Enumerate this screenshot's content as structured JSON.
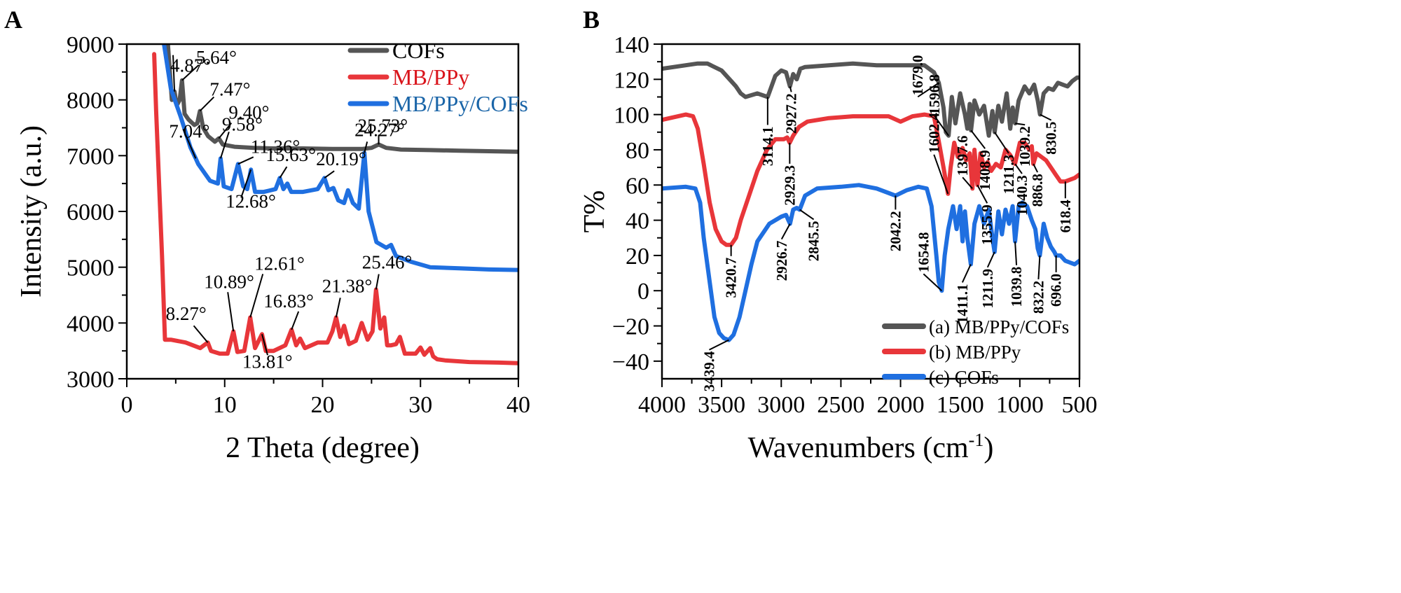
{
  "chart_data": [
    {
      "panel": "A",
      "type": "line",
      "title": "",
      "xlabel": "2 Theta (degree)",
      "ylabel": "Intensity (a.u.)",
      "xlim": [
        0,
        40
      ],
      "ylim": [
        3000,
        9000
      ],
      "xticks": [
        0,
        10,
        20,
        30,
        40
      ],
      "yticks": [
        3000,
        4000,
        5000,
        6000,
        7000,
        8000,
        9000
      ],
      "legend_position": "top-right",
      "grid": false,
      "series": [
        {
          "name": "COFs",
          "color": "#555555",
          "legend_color": "#000000",
          "x": [
            4.2,
            4.6,
            4.87,
            5.1,
            5.4,
            5.64,
            5.9,
            6.3,
            6.9,
            7.2,
            7.47,
            7.8,
            8.3,
            9.0,
            9.4,
            9.8,
            11,
            13,
            15,
            18,
            21,
            24,
            25.0,
            25.73,
            26.5,
            28,
            31,
            34,
            37,
            40
          ],
          "y": [
            9000,
            8000,
            8150,
            7900,
            8000,
            8350,
            7750,
            7650,
            7550,
            7580,
            7800,
            7500,
            7350,
            7250,
            7310,
            7200,
            7160,
            7140,
            7130,
            7130,
            7120,
            7120,
            7140,
            7200,
            7140,
            7110,
            7100,
            7090,
            7080,
            7070
          ]
        },
        {
          "name": "MB/PPy",
          "color": "#e8363a",
          "legend_color": "#d9141b",
          "x": [
            2.8,
            3.0,
            3.6,
            3.9,
            4.5,
            6,
            7.5,
            8.27,
            8.6,
            9.5,
            10.3,
            10.89,
            11.3,
            12.0,
            12.61,
            13.1,
            13.81,
            14.2,
            15,
            16.2,
            16.83,
            17.3,
            17.7,
            18.2,
            19.5,
            20.5,
            21.0,
            21.38,
            21.8,
            22.2,
            22.7,
            23.4,
            24.0,
            24.6,
            25.1,
            25.46,
            25.9,
            26.3,
            26.6,
            27.0,
            27.5,
            27.9,
            28.4,
            29.5,
            30.0,
            30.4,
            31.0,
            31.3,
            31.7,
            32.5,
            35,
            38,
            40
          ],
          "y": [
            8820,
            7800,
            5200,
            3700,
            3700,
            3650,
            3550,
            3650,
            3500,
            3450,
            3450,
            3850,
            3480,
            3500,
            4100,
            3550,
            3800,
            3500,
            3500,
            3600,
            3880,
            3600,
            3720,
            3550,
            3650,
            3650,
            3850,
            4100,
            3750,
            3950,
            3620,
            3680,
            4000,
            3700,
            3850,
            4600,
            3900,
            4100,
            3600,
            3600,
            3620,
            3750,
            3450,
            3450,
            3560,
            3430,
            3550,
            3400,
            3350,
            3330,
            3300,
            3290,
            3280
          ]
        },
        {
          "name": "MB/PPy/COFs",
          "color": "#1f6fe0",
          "legend_color": "#1a65a8",
          "x": [
            3.8,
            4.5,
            5.5,
            6.5,
            7.04,
            7.3,
            8.5,
            9.3,
            9.58,
            9.9,
            10.7,
            11.36,
            11.9,
            12.3,
            12.68,
            13.1,
            14,
            15.2,
            15.63,
            16.0,
            16.4,
            16.8,
            18,
            19.5,
            20.19,
            20.6,
            21.1,
            21.6,
            22.2,
            22.6,
            23.1,
            23.7,
            24.27,
            24.7,
            25.5,
            26.5,
            27.0,
            27.5,
            29,
            31,
            34,
            37,
            40
          ],
          "y": [
            9000,
            8200,
            7700,
            7150,
            6950,
            6850,
            6550,
            6500,
            6950,
            6450,
            6400,
            6850,
            6450,
            6400,
            6750,
            6350,
            6350,
            6400,
            6600,
            6400,
            6500,
            6350,
            6350,
            6400,
            6600,
            6380,
            6420,
            6200,
            6150,
            6380,
            6150,
            6050,
            7050,
            6000,
            5450,
            5350,
            5400,
            5200,
            5100,
            5000,
            4980,
            4960,
            4950
          ]
        }
      ],
      "annotations": [
        {
          "text": "4.87°",
          "series": "COFs",
          "x": 4.87
        },
        {
          "text": "5.64°",
          "series": "COFs",
          "x": 5.64
        },
        {
          "text": "7.47°",
          "series": "COFs",
          "x": 7.47
        },
        {
          "text": "9.40°",
          "series": "COFs",
          "x": 9.4
        },
        {
          "text": "25.73°",
          "series": "COFs",
          "x": 25.73
        },
        {
          "text": "7.04°",
          "series": "MB/PPy/COFs",
          "x": 7.04
        },
        {
          "text": "9.58°",
          "series": "MB/PPy/COFs",
          "x": 9.58
        },
        {
          "text": "11.36°",
          "series": "MB/PPy/COFs",
          "x": 11.36
        },
        {
          "text": "12.68°",
          "series": "MB/PPy/COFs",
          "x": 12.68
        },
        {
          "text": "15.63°",
          "series": "MB/PPy/COFs",
          "x": 15.63
        },
        {
          "text": "20.19°",
          "series": "MB/PPy/COFs",
          "x": 20.19
        },
        {
          "text": "24.27°",
          "series": "MB/PPy/COFs",
          "x": 24.27
        },
        {
          "text": "8.27°",
          "series": "MB/PPy",
          "x": 8.27
        },
        {
          "text": "10.89°",
          "series": "MB/PPy",
          "x": 10.89
        },
        {
          "text": "12.61°",
          "series": "MB/PPy",
          "x": 12.61
        },
        {
          "text": "13.81°",
          "series": "MB/PPy",
          "x": 13.81
        },
        {
          "text": "16.83°",
          "series": "MB/PPy",
          "x": 16.83
        },
        {
          "text": "21.38°",
          "series": "MB/PPy",
          "x": 21.38
        },
        {
          "text": "25.46°",
          "series": "MB/PPy",
          "x": 25.46
        }
      ]
    },
    {
      "panel": "B",
      "type": "line",
      "title": "",
      "xlabel": "Wavenumbers (cm",
      "xlabel_sup": "-1",
      "xlabel_end": ")",
      "ylabel": "T%",
      "xlim": [
        4000,
        500
      ],
      "ylim": [
        -50,
        140
      ],
      "xticks": [
        4000,
        3500,
        3000,
        2500,
        2000,
        1500,
        1000,
        500
      ],
      "yticks": [
        -40,
        -20,
        0,
        20,
        40,
        60,
        80,
        100,
        120,
        140
      ],
      "legend_position": "bottom-right",
      "grid": false,
      "series": [
        {
          "name": "(a) MB/PPy/COFs",
          "color": "#555555",
          "x": [
            4000,
            3700,
            3620,
            3500,
            3420,
            3380,
            3340,
            3300,
            3200,
            3114.1,
            3050,
            3000,
            2960,
            2927.2,
            2900,
            2870,
            2840,
            2800,
            2600,
            2400,
            2200,
            2000,
            1800,
            1720,
            1679,
            1640,
            1620,
            1596.8,
            1570,
            1540,
            1500,
            1460,
            1440,
            1420,
            1408.9,
            1380,
            1340,
            1300,
            1260,
            1230,
            1211.3,
            1180,
            1150,
            1110,
            1080,
            1060,
            1039.2,
            1010,
            960,
            920,
            880,
            850,
            830.5,
            800,
            760,
            720,
            680,
            640,
            600,
            560,
            520,
            500
          ],
          "y": [
            126,
            129,
            129,
            125,
            119,
            116,
            112,
            110,
            112,
            110,
            122,
            125,
            124,
            116,
            123,
            120,
            126,
            127,
            128,
            129,
            128,
            128,
            128,
            124,
            118,
            104,
            90,
            88,
            110,
            95,
            112,
            100,
            92,
            106,
            91,
            108,
            100,
            105,
            88,
            102,
            90,
            105,
            96,
            112,
            92,
            104,
            95,
            108,
            116,
            112,
            117,
            108,
            100,
            112,
            115,
            114,
            118,
            117,
            116,
            119,
            121,
            121
          ]
        },
        {
          "name": "(b) MB/PPy",
          "color": "#e8363a",
          "x": [
            4000,
            3800,
            3740,
            3700,
            3650,
            3600,
            3550,
            3500,
            3460,
            3420.7,
            3380,
            3340,
            3280,
            3200,
            3120,
            3050,
            2980,
            2950,
            2929.3,
            2900,
            2850,
            2780,
            2600,
            2400,
            2200,
            2100,
            2000,
            1900,
            1800,
            1720,
            1680,
            1640,
            1602.4,
            1580,
            1550,
            1520,
            1480,
            1450,
            1420,
            1397.6,
            1380,
            1355.9,
            1330,
            1300,
            1270,
            1240,
            1200,
            1160,
            1120,
            1080,
            1040.3,
            1000,
            960,
            920,
            900,
            886.8,
            860,
            820,
            780,
            740,
            700,
            660,
            618.4,
            580,
            540,
            500
          ],
          "y": [
            97,
            100,
            99,
            92,
            72,
            50,
            35,
            28,
            26,
            26,
            30,
            40,
            52,
            68,
            80,
            86,
            86,
            87,
            84,
            88,
            93,
            96,
            98,
            99,
            99,
            99,
            96,
            99,
            100,
            99,
            85,
            70,
            55,
            70,
            84,
            76,
            81,
            74,
            78,
            58,
            80,
            60,
            78,
            70,
            73,
            68,
            72,
            70,
            80,
            77,
            72,
            84,
            84,
            80,
            82,
            72,
            78,
            76,
            74,
            70,
            66,
            62,
            62,
            63,
            64,
            66
          ]
        },
        {
          "name": "(c) COFs",
          "color": "#1f6fe0",
          "x": [
            4000,
            3800,
            3720,
            3680,
            3650,
            3600,
            3560,
            3520,
            3480,
            3439.4,
            3400,
            3350,
            3300,
            3250,
            3200,
            3100,
            3000,
            2960,
            2940,
            2926.7,
            2900,
            2870,
            2845.5,
            2800,
            2700,
            2500,
            2350,
            2200,
            2042.2,
            1950,
            1850,
            1780,
            1740,
            1700,
            1680,
            1654.8,
            1630,
            1600,
            1560,
            1530,
            1500,
            1480,
            1460,
            1440,
            1411.1,
            1380,
            1340,
            1300,
            1260,
            1230,
            1211.9,
            1180,
            1150,
            1120,
            1090,
            1060,
            1039.8,
            1010,
            980,
            940,
            900,
            870,
            850,
            832.2,
            800,
            770,
            740,
            710,
            696,
            660,
            620,
            580,
            540,
            500
          ],
          "y": [
            58,
            59,
            58,
            50,
            30,
            5,
            -15,
            -24,
            -27,
            -28,
            -25,
            -15,
            0,
            15,
            28,
            38,
            42,
            43,
            40,
            38,
            46,
            47,
            46,
            54,
            58,
            59,
            60,
            58,
            54,
            57,
            59,
            58,
            48,
            20,
            5,
            0,
            20,
            35,
            48,
            35,
            48,
            28,
            45,
            30,
            15,
            38,
            48,
            38,
            46,
            30,
            22,
            45,
            32,
            46,
            38,
            48,
            28,
            48,
            50,
            48,
            40,
            35,
            24,
            20,
            38,
            30,
            25,
            22,
            20,
            20,
            17,
            16,
            15,
            17
          ]
        }
      ],
      "annotations": [
        {
          "text": "3114.1",
          "series": "(a) MB/PPy/COFs",
          "x": 3114.1
        },
        {
          "text": "2927.2",
          "series": "(a) MB/PPy/COFs",
          "x": 2927.2
        },
        {
          "text": "1679.0",
          "series": "(a) MB/PPy/COFs",
          "x": 1679.0
        },
        {
          "text": "1596.8",
          "series": "(a) MB/PPy/COFs",
          "x": 1596.8
        },
        {
          "text": "1408.9",
          "series": "(a) MB/PPy/COFs",
          "x": 1408.9
        },
        {
          "text": "1211.3",
          "series": "(a) MB/PPy/COFs",
          "x": 1211.3
        },
        {
          "text": "1039.2",
          "series": "(a) MB/PPy/COFs",
          "x": 1039.2
        },
        {
          "text": "830.5",
          "series": "(a) MB/PPy/COFs",
          "x": 830.5
        },
        {
          "text": "3420.7",
          "series": "(b) MB/PPy",
          "x": 3420.7
        },
        {
          "text": "2929.3",
          "series": "(b) MB/PPy",
          "x": 2929.3
        },
        {
          "text": "1602.4",
          "series": "(b) MB/PPy",
          "x": 1602.4
        },
        {
          "text": "1397.6",
          "series": "(b) MB/PPy",
          "x": 1397.6
        },
        {
          "text": "1355.9",
          "series": "(b) MB/PPy",
          "x": 1355.9
        },
        {
          "text": "1040.3",
          "series": "(b) MB/PPy",
          "x": 1040.3
        },
        {
          "text": "886.8",
          "series": "(b) MB/PPy",
          "x": 886.8
        },
        {
          "text": "618.4",
          "series": "(b) MB/PPy",
          "x": 618.4
        },
        {
          "text": "3439.4",
          "series": "(c) COFs",
          "x": 3439.4
        },
        {
          "text": "2926.7",
          "series": "(c) COFs",
          "x": 2926.7
        },
        {
          "text": "2845.5",
          "series": "(c) COFs",
          "x": 2845.5
        },
        {
          "text": "2042.2",
          "series": "(c) COFs",
          "x": 2042.2
        },
        {
          "text": "1654.8",
          "series": "(c) COFs",
          "x": 1654.8
        },
        {
          "text": "1411.1",
          "series": "(c) COFs",
          "x": 1411.1
        },
        {
          "text": "1211.9",
          "series": "(c) COFs",
          "x": 1211.9
        },
        {
          "text": "1039.8",
          "series": "(c) COFs",
          "x": 1039.8
        },
        {
          "text": "832.2",
          "series": "(c) COFs",
          "x": 832.2
        },
        {
          "text": "696.0",
          "series": "(c) COFs",
          "x": 696.0
        }
      ]
    }
  ]
}
